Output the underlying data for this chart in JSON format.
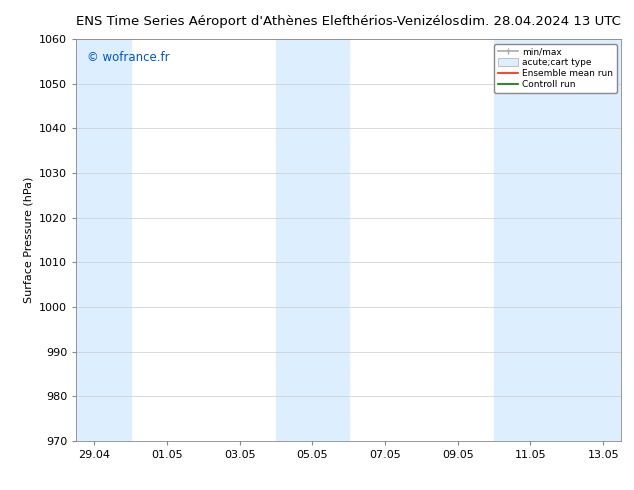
{
  "title_left": "ENS Time Series Aéroport d'Athènes Elefthérios-Venizélos",
  "title_right": "dim. 28.04.2024 13 UTC",
  "ylabel": "Surface Pressure (hPa)",
  "watermark": "© wofrance.fr",
  "watermark_color": "#0055cc",
  "ylim": [
    970,
    1060
  ],
  "yticks": [
    970,
    980,
    990,
    1000,
    1010,
    1020,
    1030,
    1040,
    1050,
    1060
  ],
  "xtick_labels": [
    "29.04",
    "01.05",
    "03.05",
    "05.05",
    "07.05",
    "09.05",
    "11.05",
    "13.05"
  ],
  "xtick_positions": [
    0,
    2,
    4,
    6,
    8,
    10,
    12,
    14
  ],
  "xmin": -0.5,
  "xmax": 14.5,
  "shade_regions": [
    {
      "xstart": -0.5,
      "xend": 1.0
    },
    {
      "xstart": 5.0,
      "xend": 7.0
    },
    {
      "xstart": 11.0,
      "xend": 14.5
    }
  ],
  "shade_color": "#ddeeff",
  "background_color": "#ffffff",
  "legend_labels": [
    "min/max",
    "acute;cart type",
    "Ensemble mean run",
    "Controll run"
  ],
  "grid_color": "#cccccc",
  "title_fontsize": 9.5,
  "tick_fontsize": 8,
  "ylabel_fontsize": 8
}
